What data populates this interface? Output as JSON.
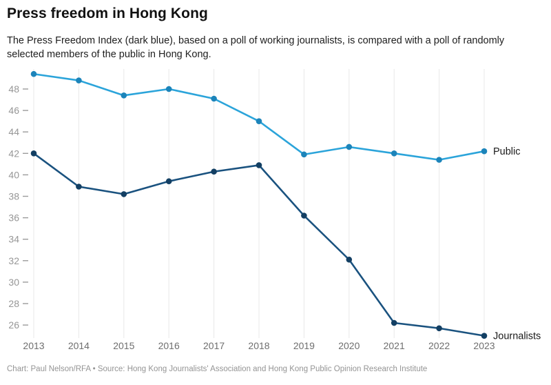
{
  "header": {
    "title": "Press freedom in Hong Kong",
    "subtitle_line1": "The Press Freedom Index (dark blue), based on a poll of working journalists, is compared with a poll of randomly",
    "subtitle_line2": "selected members of the public in Hong Kong."
  },
  "footer": {
    "credit": "Chart: Paul Nelson/RFA • Source: Hong Kong Journalists' Association and Hong Kong Public Opinion Research Institute"
  },
  "chart_data": {
    "type": "line",
    "title": "Press freedom in Hong Kong",
    "xlabel": "",
    "ylabel": "",
    "x": [
      2013,
      2014,
      2015,
      2016,
      2017,
      2018,
      2019,
      2020,
      2021,
      2022,
      2023
    ],
    "series": [
      {
        "name": "Public",
        "color": "#2BA4DA",
        "marker_color": "#1C84BA",
        "values": [
          49.4,
          48.8,
          47.4,
          48.0,
          47.1,
          45.0,
          41.9,
          42.6,
          42.0,
          41.4,
          42.2
        ]
      },
      {
        "name": "Journalists",
        "color": "#1A527F",
        "marker_color": "#133F63",
        "values": [
          42.0,
          38.9,
          38.2,
          39.4,
          40.3,
          40.9,
          36.2,
          32.1,
          26.2,
          25.7,
          25.0
        ]
      }
    ],
    "yticks": [
      26,
      28,
      30,
      32,
      34,
      36,
      38,
      40,
      42,
      44,
      46,
      48
    ],
    "ylim": [
      24.5,
      49.6
    ],
    "grid": "vertical-only",
    "grid_color": "#e8e8e8",
    "legend_position": "end-of-line-labels"
  }
}
